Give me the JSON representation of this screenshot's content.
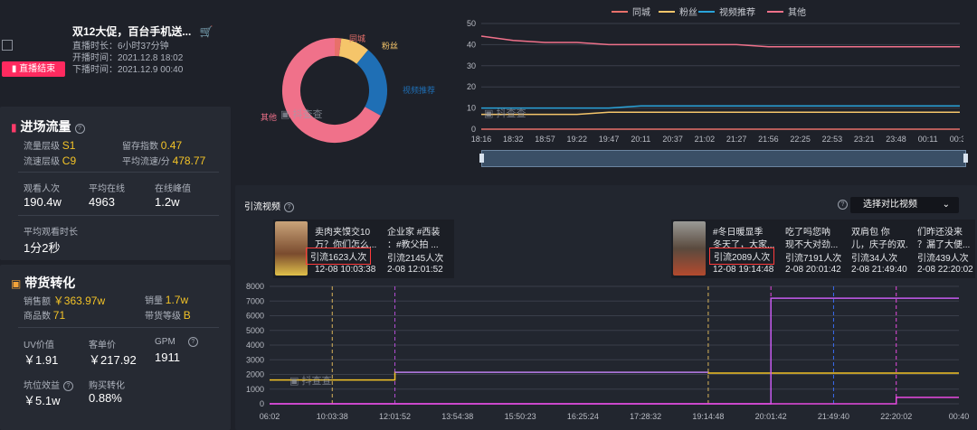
{
  "stream": {
    "title": "双12大促，百台手机送...",
    "duration_label": "直播时长：",
    "duration": "6小时37分钟",
    "start_label": "开播时间：",
    "start": "2021.12.8 18:02",
    "end_label": "下播时间：",
    "end": "2021.12.9 00:40",
    "ended_badge": "直播结束"
  },
  "traffic": {
    "header": "进场流量",
    "level_label": "流量层级",
    "level": "S1",
    "retain_label": "留存指数",
    "retain": "0.47",
    "speed_label": "流速层级",
    "speed": "C9",
    "avg_speed_label": "平均流速/分",
    "avg_speed": "478.77",
    "viewers_label": "观看人次",
    "viewers": "190.4w",
    "avg_online_label": "平均在线",
    "avg_online": "4963",
    "peak_label": "在线峰值",
    "peak": "1.2w",
    "avg_watch_label": "平均观看时长",
    "avg_watch": "1分2秒"
  },
  "sales": {
    "header": "带货转化",
    "amount_label": "销售额",
    "amount": "￥363.97w",
    "volume_label": "销量",
    "volume": "1.7w",
    "products_label": "商品数",
    "products": "71",
    "grade_label": "带货等级",
    "grade": "B",
    "uv_label": "UV价值",
    "uv": "￥1.91",
    "price_label": "客单价",
    "price": "￥217.92",
    "gpm_label": "GPM",
    "gpm": "1911",
    "pit_label": "坑位效益",
    "pit": "￥5.1w",
    "buy_label": "购买转化",
    "buy": "0.88%"
  },
  "donut": {
    "labels": [
      "同城",
      "粉丝",
      "视频推荐",
      "其他"
    ],
    "shares": [
      0.02,
      0.09,
      0.22,
      0.67
    ],
    "colors": [
      "#e8706a",
      "#f5c56a",
      "#1f6fb5",
      "#f0718a"
    ],
    "watermark": "抖查查"
  },
  "chart_data": [
    {
      "type": "line",
      "legend": [
        "同城",
        "粉丝",
        "视频推荐",
        "其他"
      ],
      "colors": [
        "#e8706a",
        "#f5c56a",
        "#29a3d9",
        "#f0718a"
      ],
      "x": [
        "18:16",
        "18:32",
        "18:57",
        "19:22",
        "19:47",
        "20:11",
        "20:37",
        "21:02",
        "21:27",
        "21:56",
        "22:25",
        "22:53",
        "23:21",
        "23:48",
        "00:11",
        "00:31"
      ],
      "ylim": [
        0,
        50
      ],
      "yticks": [
        0,
        10,
        20,
        30,
        40,
        50
      ],
      "series": [
        {
          "name": "同城",
          "values": [
            0,
            0,
            0,
            0,
            0,
            0,
            0,
            0,
            0,
            0,
            0,
            0,
            0,
            0,
            0,
            0
          ]
        },
        {
          "name": "粉丝",
          "values": [
            7,
            7,
            7,
            7,
            8,
            8,
            8,
            8,
            8,
            8,
            8,
            8,
            8,
            8,
            8,
            8
          ]
        },
        {
          "name": "视频推荐",
          "values": [
            10,
            10,
            10,
            10,
            10,
            11,
            11,
            11,
            11,
            11,
            11,
            11,
            11,
            11,
            11,
            11
          ]
        },
        {
          "name": "其他",
          "values": [
            44,
            42,
            41,
            41,
            40,
            40,
            40,
            40,
            40,
            39,
            39,
            39,
            39,
            39,
            39,
            39
          ]
        }
      ],
      "watermark": "抖查查"
    },
    {
      "type": "line",
      "title": "引流视频",
      "x": [
        "06:02",
        "10:03:38",
        "12:01:52",
        "13:54:38",
        "15:50:23",
        "16:25:24",
        "17:28:32",
        "19:14:48",
        "20:01:42",
        "21:49:40",
        "22:20:02",
        "00:40"
      ],
      "ylim": [
        0,
        8000
      ],
      "yticks": [
        0,
        1000,
        2000,
        3000,
        4000,
        5000,
        6000,
        7000,
        8000
      ],
      "series": [
        {
          "values": [
            1623,
            1623,
            2145,
            2145,
            2145,
            2145,
            2145,
            2089,
            2089,
            2089,
            2089,
            2089
          ]
        },
        {
          "values": [
            0,
            0,
            0,
            0,
            0,
            0,
            0,
            0,
            7191,
            7191,
            7191,
            7191
          ]
        },
        {
          "values": [
            0,
            0,
            0,
            0,
            0,
            0,
            0,
            0,
            0,
            0,
            439,
            439
          ]
        }
      ],
      "watermark": "抖查查"
    }
  ],
  "videos": {
    "header": "引流视频",
    "compare_label": "选择对比视频",
    "items": [
      {
        "title1": "卖肉夹馍交10",
        "title2": "万？你们怎么...",
        "flow": "引流1623人次",
        "time": "12-08 10:03:38"
      },
      {
        "title1": "企业家 #西装",
        "title2": "：#教父拍 ...",
        "flow": "引流2145人次",
        "time": "2-08 12:01:52"
      },
      {
        "title1": "#冬日暖显季",
        "title2": "冬天了，大家...",
        "flow": "引流2089人次",
        "time": "12-08 19:14:48"
      },
      {
        "title1": "吃了吗您呐",
        "title2": "现不大对劲...",
        "flow": "引流7191人次",
        "time": "2-08 20:01:42"
      },
      {
        "title1": "双肩包 你",
        "title2": "儿，庆子的双...",
        "flow": "引流34人次",
        "time": "2-08 21:49:40"
      },
      {
        "title1": "们昨还没来",
        "title2": "？漏了大便...",
        "flow": "引流439人次",
        "time": "2-08 22:20:02"
      }
    ]
  }
}
